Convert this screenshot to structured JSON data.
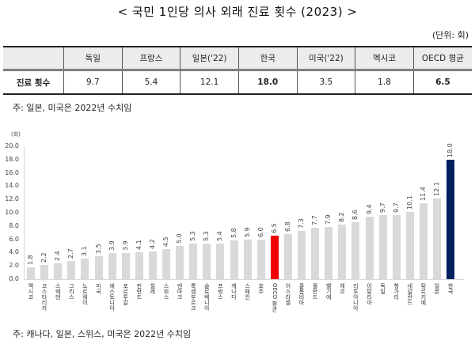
{
  "title": "< 국민 1인당 의사 외래 진료 횟수 (2023) >",
  "unit_label": "(단위: 회)",
  "table": {
    "headers": [
      "",
      "독일",
      "프랑스",
      "일본('22)",
      "한국",
      "미국('22)",
      "멕시코",
      "OECD 평균"
    ],
    "row_label": "진료 횟수",
    "values": [
      "9.7",
      "5.4",
      "12.1",
      "18.0",
      "3.5",
      "1.8",
      "6.5"
    ]
  },
  "note_table": "주: 일본, 미국은 2022년 수치임",
  "note_chart": "주: 캐나다, 일본, 스위스, 미국은 2022년 수치임",
  "colors": {
    "default_bar": "#d9d9d9",
    "oecd_bar": "#f00000",
    "korea_bar": "#002060"
  },
  "chart_data": {
    "type": "bar",
    "title": "",
    "xlabel": "",
    "ylabel": "(회)",
    "ylim": [
      0,
      20
    ],
    "yticks": [
      "0.0",
      "2.0",
      "4.0",
      "6.0",
      "8.0",
      "10.0",
      "12.0",
      "14.0",
      "16.0",
      "18.0",
      "20.0"
    ],
    "grid": false,
    "legend": "none",
    "categories": [
      "멕시코",
      "코스타리카",
      "스웨덴",
      "그리스",
      "노르웨이",
      "미국",
      "에스토니아",
      "포르투갈",
      "핀란드",
      "칠레",
      "스위스",
      "덴마크",
      "룩셈부르크",
      "슬로베니아",
      "프랑스",
      "캐나다",
      "스페인",
      "호주",
      "OECD 평균",
      "이스라엘",
      "콜롬비아",
      "폴란드",
      "벨기에",
      "체코",
      "리투아니아",
      "이탈리아",
      "독일",
      "헝가리",
      "네덜란드",
      "튀르키예",
      "일본",
      "한국"
    ],
    "values": [
      1.8,
      2.2,
      2.4,
      2.7,
      3.1,
      3.5,
      3.9,
      3.9,
      4.1,
      4.2,
      4.5,
      5.0,
      5.3,
      5.3,
      5.4,
      5.8,
      5.9,
      6.0,
      6.5,
      6.8,
      7.3,
      7.7,
      7.9,
      8.2,
      8.6,
      9.4,
      9.7,
      9.7,
      10.1,
      11.4,
      12.1,
      18.0
    ],
    "value_labels": [
      "1.8",
      "2.2",
      "2.4",
      "2.7",
      "3.1",
      "3.5",
      "3.9",
      "3.9",
      "4.1",
      "4.2",
      "4.5",
      "5.0",
      "5.3",
      "5.3",
      "5.4",
      "5.8",
      "5.9",
      "6.0",
      "6.5",
      "6.8",
      "7.3",
      "7.7",
      "7.9",
      "8.2",
      "8.6",
      "9.4",
      "9.7",
      "9.7",
      "10.1",
      "11.4",
      "12.1",
      "18.0"
    ],
    "highlights": {
      "OECD 평균": "#f00000",
      "한국": "#002060"
    }
  }
}
